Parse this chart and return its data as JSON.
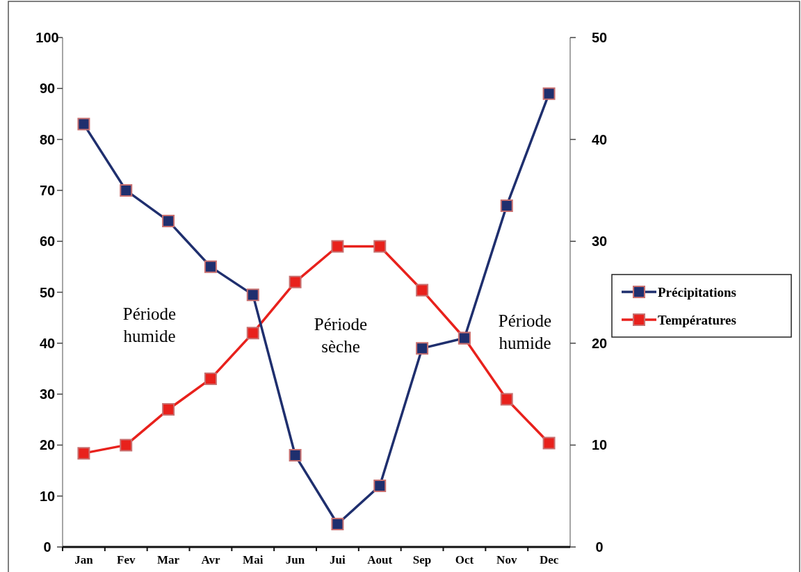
{
  "chart_data": {
    "type": "line",
    "categories": [
      "Jan",
      "Fev",
      "Mar",
      "Avr",
      "Mai",
      "Jun",
      "Jui",
      "Aout",
      "Sep",
      "Oct",
      "Nov",
      "Dec"
    ],
    "series": [
      {
        "name": "Précipitations",
        "color": "#1f2f6e",
        "values": [
          83,
          70,
          64,
          55,
          49.5,
          18,
          4.5,
          12,
          39,
          41,
          67,
          89
        ]
      },
      {
        "name": "Températures",
        "color": "#e8211c",
        "axis": "y2",
        "values": [
          9.2,
          10,
          13.5,
          16.5,
          21,
          26,
          29.5,
          29.5,
          25.2,
          20.5,
          14.5,
          10.2
        ]
      }
    ],
    "ylim": [
      0,
      100
    ],
    "yticks": [
      0,
      10,
      20,
      30,
      40,
      50,
      60,
      70,
      80,
      90,
      100
    ],
    "y2lim": [
      0,
      50
    ],
    "y2ticks": [
      0,
      10,
      20,
      30,
      40,
      50
    ],
    "annotations": [
      "Période humide",
      "Période sèche",
      "Période humide"
    ],
    "marker": "square",
    "legend": "right",
    "grid": false
  }
}
